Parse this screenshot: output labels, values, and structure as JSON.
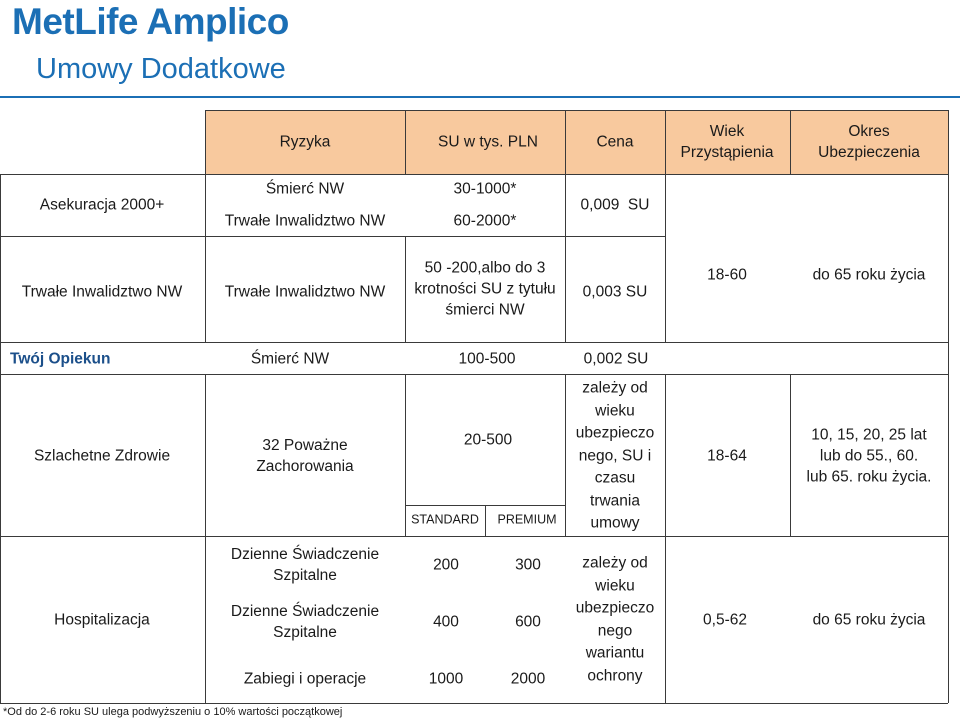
{
  "header": {
    "logo": "MetLife Amplico",
    "title": "Umowy Dodatkowe"
  },
  "table": {
    "headers": {
      "ryzyka": "Ryzyka",
      "su": "SU w tys. PLN",
      "cena": "Cena",
      "wiek": [
        "Wiek",
        "Przystąpienia"
      ],
      "okres": [
        "Okres",
        "Ubezpieczenia"
      ]
    },
    "asekuracja": {
      "name": "Asekuracja 2000+",
      "risk1": "Śmierć NW",
      "su1": "30-1000*",
      "risk2": "Trwałe Inwalidztwo NW",
      "su2": "60-2000*",
      "price": "0,009  SU"
    },
    "trwale": {
      "name": "Trwałe Inwalidztwo NW",
      "risk": "Trwałe Inwalidztwo NW",
      "su": [
        "50 -200,albo do 3",
        "krotności SU z tytułu",
        "śmierci NW"
      ],
      "price": "0,003 SU",
      "age": "18-60",
      "period": "do 65 roku życia"
    },
    "opiekun": {
      "name": "Twój Opiekun",
      "risk": "Śmierć NW",
      "su": "100-500",
      "price": "0,002 SU"
    },
    "zdrowie": {
      "name": "Szlachetne Zdrowie",
      "risk": [
        "32 Poważne",
        "Zachorowania"
      ],
      "su": "20-500",
      "variant1": "STANDARD",
      "variant2": "PREMIUM",
      "price": [
        "zależy od",
        "wieku",
        "ubezpieczo",
        "nego, SU i",
        "czasu",
        "trwania",
        "umowy"
      ],
      "age": "18-64",
      "period": [
        "10, 15, 20, 25 lat",
        "lub do 55., 60.",
        "lub 65. roku życia."
      ]
    },
    "hospitalizacja": {
      "name": "Hospitalizacja",
      "risk1": [
        "Dzienne Świadczenie",
        "Szpitalne"
      ],
      "su1a": "200",
      "su1b": "300",
      "risk2": [
        "Dzienne Świadczenie",
        "Szpitalne"
      ],
      "su2a": "400",
      "su2b": "600",
      "risk3": "Zabiegi i operacje",
      "su3a": "1000",
      "su3b": "2000",
      "price": [
        "zależy od",
        "wieku",
        "ubezpieczo",
        "nego",
        "wariantu",
        "ochrony"
      ],
      "age": "0,5-62",
      "period": "do 65 roku życia"
    }
  },
  "footnote": "*Od do 2-6 roku SU ulega podwyższeniu o 10% wartości początkowej",
  "colors": {
    "brand": "#1b6fb5",
    "header_fill": "#f8c99e",
    "opiekun_text": "#1b4f8a"
  }
}
